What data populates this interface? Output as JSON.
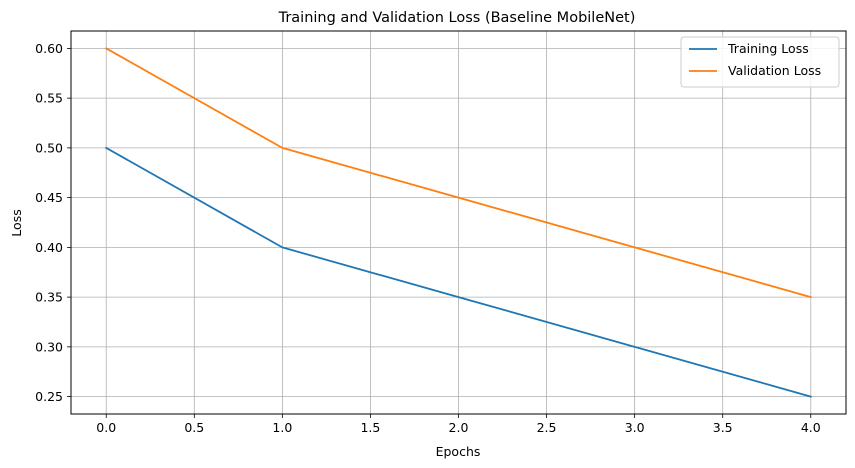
{
  "chart_data": {
    "type": "line",
    "title": "Training and Validation Loss (Baseline MobileNet)",
    "xlabel": "Epochs",
    "ylabel": "Loss",
    "x": [
      0,
      1,
      2,
      3,
      4
    ],
    "series": [
      {
        "name": "Training Loss",
        "color": "#1f77b4",
        "values": [
          0.5,
          0.4,
          0.35,
          0.3,
          0.25
        ]
      },
      {
        "name": "Validation Loss",
        "color": "#ff7f0e",
        "values": [
          0.6,
          0.5,
          0.45,
          0.4,
          0.35
        ]
      }
    ],
    "xlim": [
      -0.2,
      4.2
    ],
    "ylim": [
      0.2325,
      0.6175
    ],
    "xticks": [
      0.0,
      0.5,
      1.0,
      1.5,
      2.0,
      2.5,
      3.0,
      3.5,
      4.0
    ],
    "xtick_labels": [
      "0.0",
      "0.5",
      "1.0",
      "1.5",
      "2.0",
      "2.5",
      "3.0",
      "3.5",
      "4.0"
    ],
    "yticks": [
      0.25,
      0.3,
      0.35,
      0.4,
      0.45,
      0.5,
      0.55,
      0.6
    ],
    "ytick_labels": [
      "0.25",
      "0.30",
      "0.35",
      "0.40",
      "0.45",
      "0.50",
      "0.55",
      "0.60"
    ],
    "grid": true,
    "legend": "upper right"
  }
}
